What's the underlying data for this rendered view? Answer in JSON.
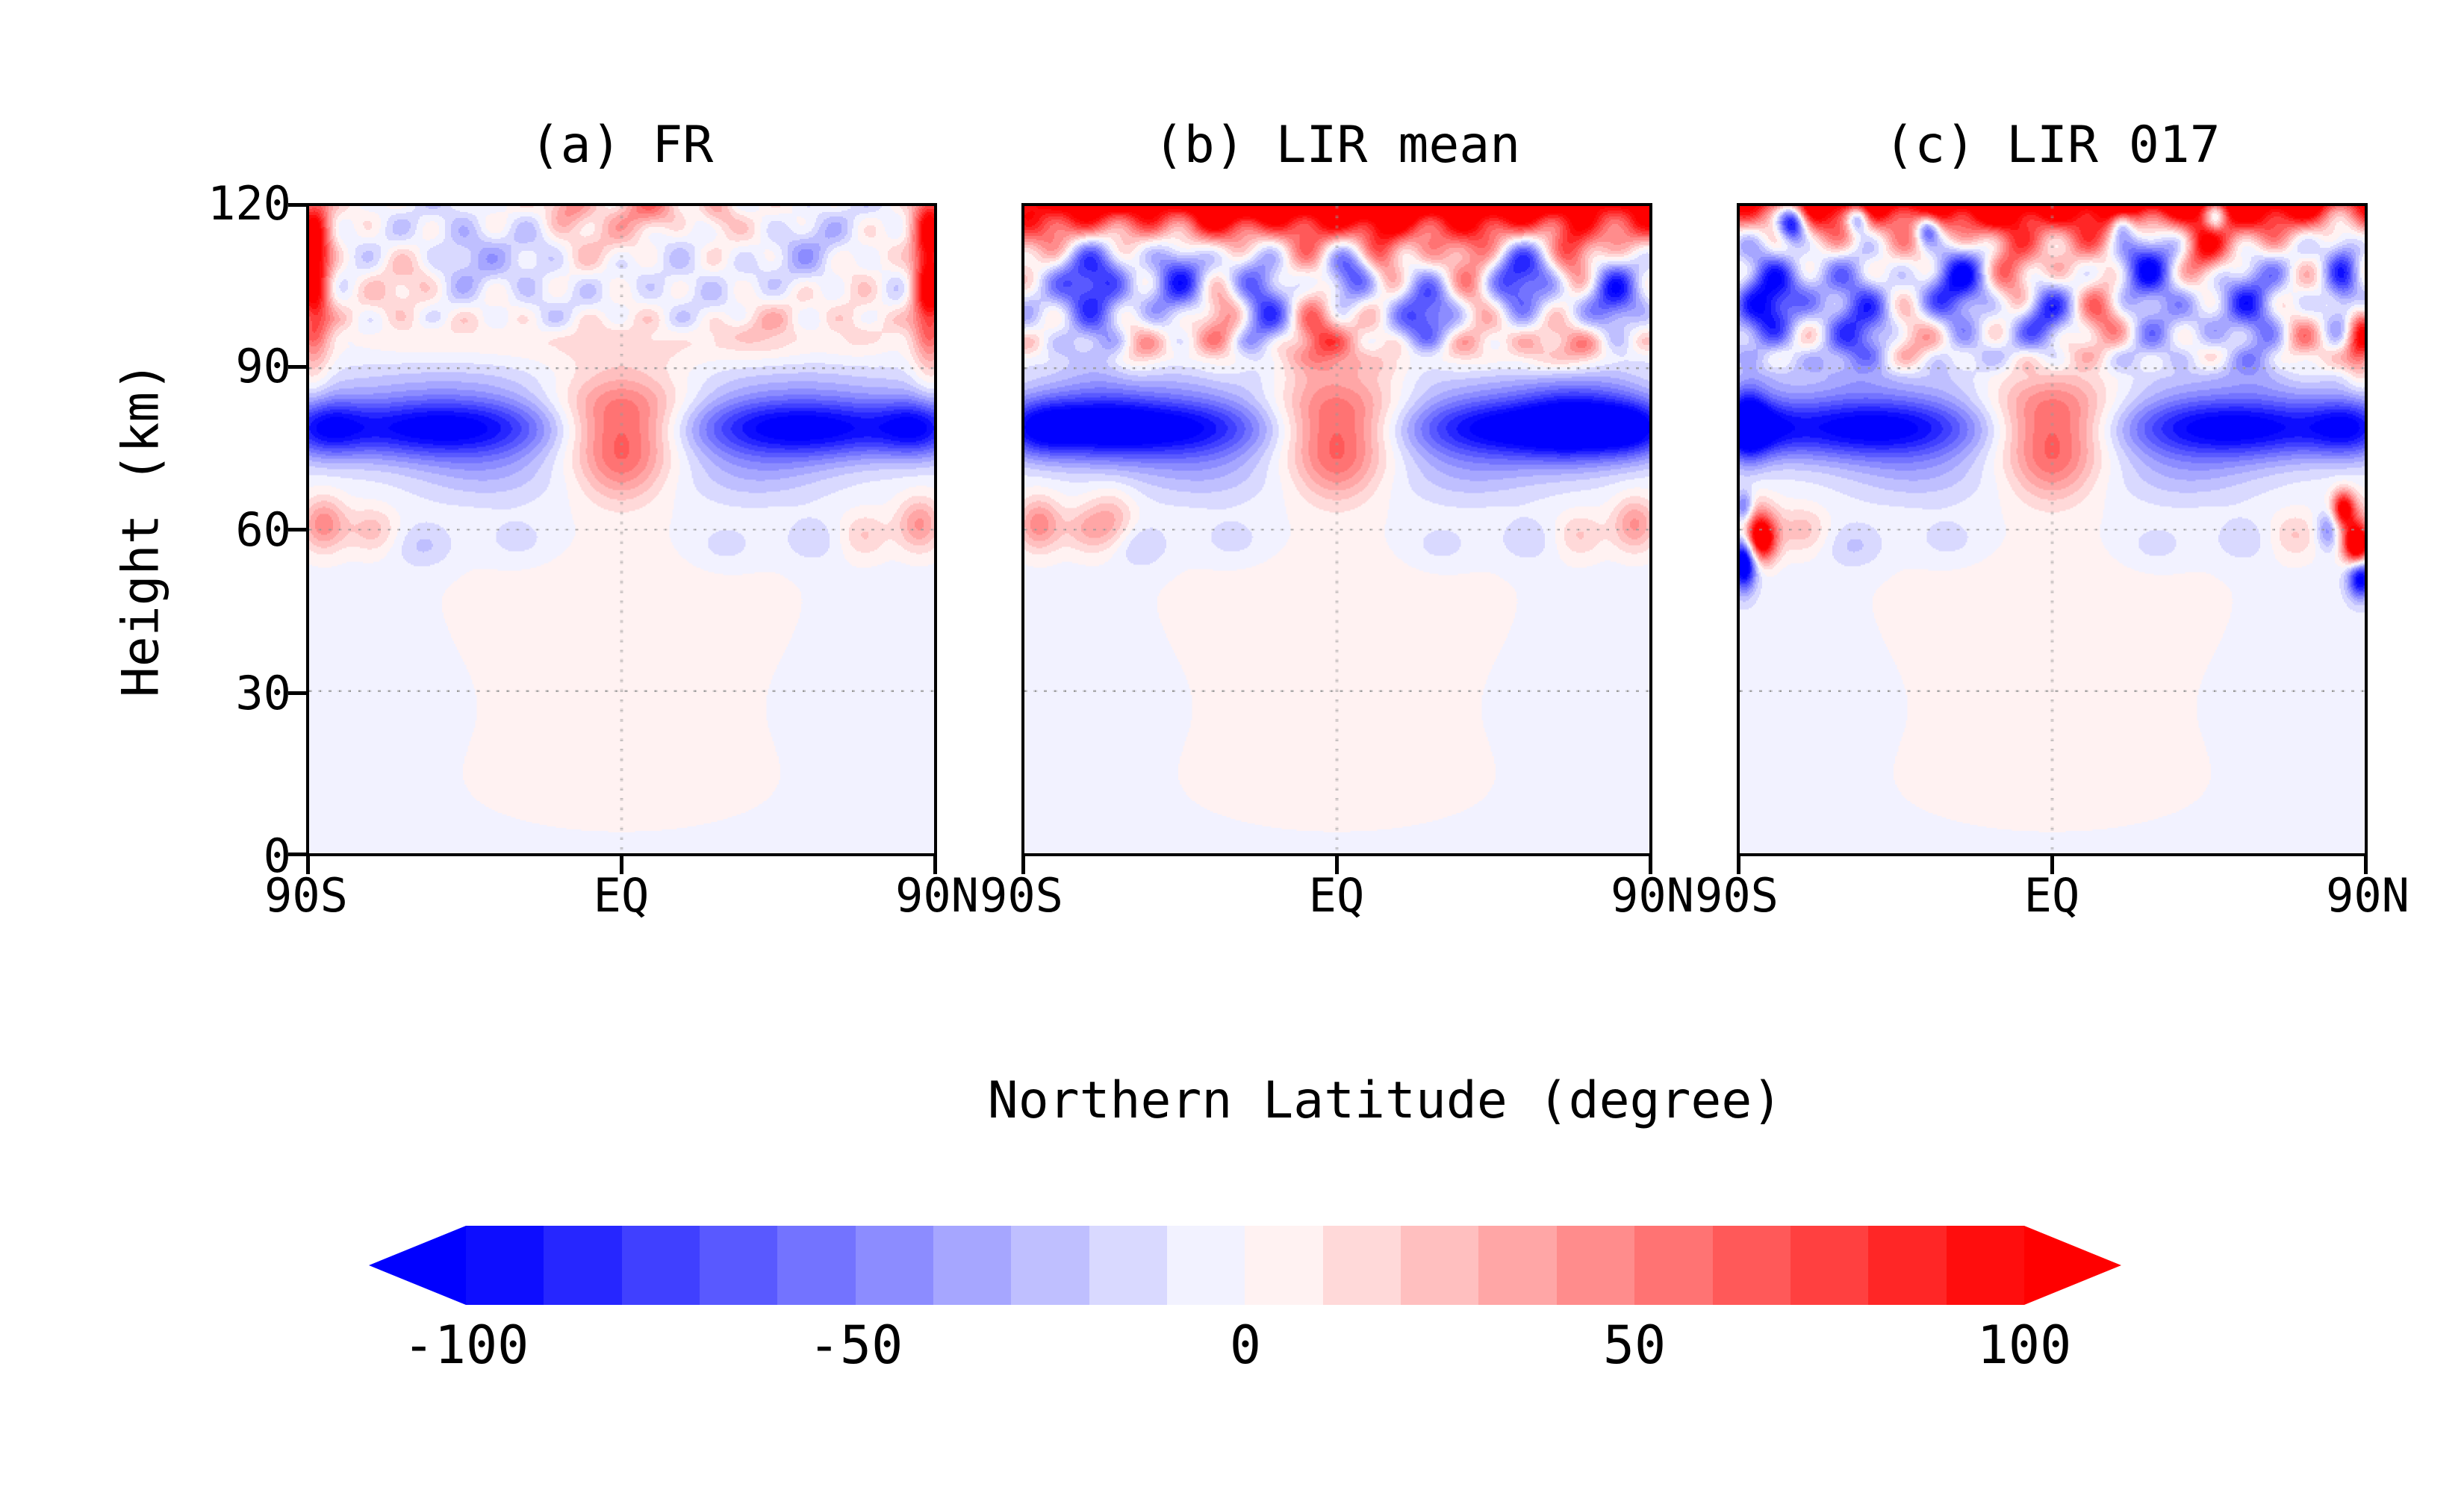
{
  "chart_data": {
    "type": "heatmap",
    "subtype": "filled-contour latitude-height cross sections",
    "xlabel": "Northern Latitude (degree)",
    "ylabel": "Height (km)",
    "x_ticks": [
      "90S",
      "EQ",
      "90N"
    ],
    "y_ticks": [
      "120",
      "90",
      "60",
      "30",
      "0"
    ],
    "y_tick_values": [
      120,
      90,
      60,
      30,
      0
    ],
    "x_range_deg": [
      -90,
      90
    ],
    "y_range_km": [
      0,
      120
    ],
    "grid": {
      "horizontal_km": [
        30,
        60,
        90
      ],
      "vertical_deg": [
        0
      ],
      "style": "dotted",
      "color": "#999999"
    },
    "background_value": -3,
    "base_features": [
      {
        "x": -52,
        "y": 79,
        "amp": -110,
        "sx": 26,
        "sy": 4.2
      },
      {
        "x": 52,
        "y": 79,
        "amp": -110,
        "sx": 26,
        "sy": 4.2
      },
      {
        "x": -86,
        "y": 79,
        "amp": -60,
        "sx": 8,
        "sy": 3.8
      },
      {
        "x": 86,
        "y": 79,
        "amp": -60,
        "sx": 8,
        "sy": 3.8
      },
      {
        "x": 0,
        "y": 80,
        "amp": 85,
        "sx": 14,
        "sy": 6.5
      },
      {
        "x": 0,
        "y": 71,
        "amp": 30,
        "sx": 8,
        "sy": 5
      },
      {
        "x": -38,
        "y": 70,
        "amp": -22,
        "sx": 16,
        "sy": 4
      },
      {
        "x": 38,
        "y": 70,
        "amp": -22,
        "sx": 16,
        "sy": 4
      },
      {
        "x": -50,
        "y": 88,
        "amp": -14,
        "sx": 28,
        "sy": 3
      },
      {
        "x": 50,
        "y": 88,
        "amp": -14,
        "sx": 28,
        "sy": 3
      },
      {
        "x": -86,
        "y": 61,
        "amp": 50,
        "sx": 4.5,
        "sy": 3.5
      },
      {
        "x": -72,
        "y": 60,
        "amp": 28,
        "sx": 5,
        "sy": 3
      },
      {
        "x": 86,
        "y": 61,
        "amp": 45,
        "sx": 4.5,
        "sy": 3.5
      },
      {
        "x": 70,
        "y": 59,
        "amp": 24,
        "sx": 5,
        "sy": 3
      },
      {
        "x": -57,
        "y": 57,
        "amp": -20,
        "sx": 6,
        "sy": 3
      },
      {
        "x": -30,
        "y": 58,
        "amp": -14,
        "sx": 7,
        "sy": 3
      },
      {
        "x": 30,
        "y": 57,
        "amp": -14,
        "sx": 7,
        "sy": 3
      },
      {
        "x": 55,
        "y": 58,
        "amp": -16,
        "sx": 6,
        "sy": 3
      },
      {
        "x": 0,
        "y": 45,
        "amp": 9,
        "sx": 45,
        "sy": 10
      },
      {
        "x": 0,
        "y": 18,
        "amp": 5,
        "sx": 55,
        "sy": 14
      },
      {
        "x": -75,
        "y": 35,
        "amp": -6,
        "sx": 20,
        "sy": 12
      },
      {
        "x": 75,
        "y": 35,
        "amp": -6,
        "sx": 20,
        "sy": 12
      }
    ],
    "panels": [
      {
        "label": "(a) FR",
        "noise": {
          "amp": 16,
          "ymin": 94,
          "seed": 5
        },
        "features": [
          {
            "x": -89,
            "y": 109,
            "amp": 130,
            "sx": 3.5,
            "sy": 11
          },
          {
            "x": 89,
            "y": 109,
            "amp": 130,
            "sx": 3.5,
            "sy": 11
          },
          {
            "x": -15,
            "y": 120,
            "amp": 55,
            "sx": 5,
            "sy": 3
          },
          {
            "x": 8,
            "y": 120,
            "amp": 50,
            "sx": 6,
            "sy": 3
          },
          {
            "x": 28,
            "y": 119,
            "amp": 40,
            "sx": 4,
            "sy": 3
          },
          {
            "x": -45,
            "y": 112,
            "amp": -28,
            "sx": 7,
            "sy": 5
          },
          {
            "x": -25,
            "y": 107,
            "amp": -18,
            "sx": 6,
            "sy": 5
          },
          {
            "x": 18,
            "y": 106,
            "amp": -16,
            "sx": 8,
            "sy": 5
          },
          {
            "x": 55,
            "y": 111,
            "amp": -22,
            "sx": 7,
            "sy": 5
          },
          {
            "x": -62,
            "y": 104,
            "amp": 22,
            "sx": 7,
            "sy": 5
          },
          {
            "x": -2,
            "y": 113,
            "amp": 18,
            "sx": 9,
            "sy": 4
          },
          {
            "x": 40,
            "y": 98,
            "amp": 18,
            "sx": 8,
            "sy": 4
          },
          {
            "x": 68,
            "y": 101,
            "amp": 22,
            "sx": 6,
            "sy": 5
          },
          {
            "x": 0,
            "y": 95,
            "amp": 13,
            "sx": 50,
            "sy": 3
          }
        ]
      },
      {
        "label": "(b) LIR mean",
        "noise": {
          "amp": 24,
          "ymin": 90,
          "seed": 11
        },
        "features": [
          {
            "x": 0,
            "y": 124,
            "amp": 180,
            "sx": 110,
            "sy": 7
          },
          {
            "x": -70,
            "y": 105,
            "amp": -95,
            "sx": 7,
            "sy": 7
          },
          {
            "x": -46,
            "y": 109,
            "amp": -85,
            "sx": 6,
            "sy": 6
          },
          {
            "x": -22,
            "y": 103,
            "amp": -80,
            "sx": 6,
            "sy": 7
          },
          {
            "x": 3,
            "y": 109,
            "amp": -70,
            "sx": 5,
            "sy": 5
          },
          {
            "x": 25,
            "y": 101,
            "amp": -75,
            "sx": 6,
            "sy": 6
          },
          {
            "x": 53,
            "y": 107,
            "amp": -90,
            "sx": 7,
            "sy": 6
          },
          {
            "x": 80,
            "y": 104,
            "amp": -75,
            "sx": 5,
            "sy": 6
          },
          {
            "x": -33,
            "y": 100,
            "amp": 55,
            "sx": 5,
            "sy": 5
          },
          {
            "x": -6,
            "y": 99,
            "amp": 65,
            "sx": 5,
            "sy": 5
          },
          {
            "x": 14,
            "y": 111,
            "amp": 55,
            "sx": 4,
            "sy": 4
          },
          {
            "x": 40,
            "y": 105,
            "amp": 60,
            "sx": 5,
            "sy": 5
          },
          {
            "x": 68,
            "y": 112,
            "amp": 55,
            "sx": 4,
            "sy": 4
          },
          {
            "x": -58,
            "y": 96,
            "amp": 45,
            "sx": 5,
            "sy": 4
          },
          {
            "x": 65,
            "y": 95,
            "amp": 50,
            "sx": 9,
            "sy": 3.5
          },
          {
            "x": 10,
            "y": 93,
            "amp": 25,
            "sx": 35,
            "sy": 3
          },
          {
            "x": 70,
            "y": 80,
            "amp": -55,
            "sx": 11,
            "sy": 5.5
          },
          {
            "x": -70,
            "y": 80,
            "amp": -35,
            "sx": 11,
            "sy": 5
          },
          {
            "x": -65,
            "y": 62,
            "amp": 30,
            "sx": 5,
            "sy": 4
          }
        ]
      },
      {
        "label": "(c) LIR 017",
        "noise": {
          "amp": 28,
          "ymin": 88,
          "seed": 23
        },
        "features": [
          {
            "x": 0,
            "y": 124,
            "amp": 180,
            "sx": 110,
            "sy": 6
          },
          {
            "x": -75,
            "y": 117,
            "amp": -150,
            "sx": 3,
            "sy": 2.5
          },
          {
            "x": -56,
            "y": 118,
            "amp": -120,
            "sx": 2.5,
            "sy": 2
          },
          {
            "x": -36,
            "y": 116,
            "amp": -100,
            "sx": 2.5,
            "sy": 2
          },
          {
            "x": 20,
            "y": 117,
            "amp": -90,
            "sx": 2.5,
            "sy": 2
          },
          {
            "x": 47,
            "y": 118,
            "amp": -80,
            "sx": 2.2,
            "sy": 2
          },
          {
            "x": -82,
            "y": 104,
            "amp": -100,
            "sx": 6,
            "sy": 7
          },
          {
            "x": -56,
            "y": 100,
            "amp": -85,
            "sx": 7,
            "sy": 6
          },
          {
            "x": -27,
            "y": 106,
            "amp": -85,
            "sx": 6,
            "sy": 7
          },
          {
            "x": -2,
            "y": 100,
            "amp": -65,
            "sx": 5,
            "sy": 5
          },
          {
            "x": 28,
            "y": 108,
            "amp": -90,
            "sx": 6,
            "sy": 7
          },
          {
            "x": 58,
            "y": 100,
            "amp": -75,
            "sx": 6,
            "sy": 6
          },
          {
            "x": 84,
            "y": 109,
            "amp": -85,
            "sx": 4,
            "sy": 6
          },
          {
            "x": -42,
            "y": 97,
            "amp": 55,
            "sx": 5,
            "sy": 4
          },
          {
            "x": -12,
            "y": 110,
            "amp": 65,
            "sx": 5,
            "sy": 5
          },
          {
            "x": 14,
            "y": 102,
            "amp": 60,
            "sx": 5,
            "sy": 5
          },
          {
            "x": 44,
            "y": 112,
            "amp": 65,
            "sx": 4,
            "sy": 4
          },
          {
            "x": 72,
            "y": 95,
            "amp": 55,
            "sx": 5,
            "sy": 3.5
          },
          {
            "x": 89,
            "y": 96,
            "amp": 90,
            "sx": 3,
            "sy": 5
          },
          {
            "x": -88,
            "y": 80,
            "amp": -70,
            "sx": 4,
            "sy": 5
          },
          {
            "x": -84,
            "y": 58,
            "amp": 120,
            "sx": 3,
            "sy": 2.8
          },
          {
            "x": -89,
            "y": 54,
            "amp": -140,
            "sx": 2.5,
            "sy": 3.5
          },
          {
            "x": -89,
            "y": 64,
            "amp": -70,
            "sx": 2,
            "sy": 2.2
          },
          {
            "x": 88,
            "y": 57,
            "amp": 140,
            "sx": 2.6,
            "sy": 2.6
          },
          {
            "x": 84,
            "y": 64,
            "amp": 100,
            "sx": 2.2,
            "sy": 2.2
          },
          {
            "x": 89,
            "y": 51,
            "amp": -110,
            "sx": 2.6,
            "sy": 2.6
          },
          {
            "x": 80,
            "y": 60,
            "amp": -60,
            "sx": 2.6,
            "sy": 2.6
          }
        ]
      }
    ],
    "colorbar": {
      "orientation": "horizontal",
      "min": -100,
      "max": 100,
      "step": 10,
      "ticks": [
        "-100",
        "-50",
        "0",
        "50",
        "100"
      ],
      "arrow_left_color": "#0000FF",
      "arrow_right_color": "#FF0000",
      "colors": [
        "#0D0DFF",
        "#2626FF",
        "#4040FF",
        "#5959FF",
        "#7373FF",
        "#8C8CFF",
        "#A6A6FF",
        "#BFBFFF",
        "#D9D9FF",
        "#F2F2FF",
        "#FFF2F2",
        "#FFD9D9",
        "#FFBFBF",
        "#FFA6A6",
        "#FF8C8C",
        "#FF7373",
        "#FF5959",
        "#FF4040",
        "#FF2626",
        "#FF0D0D"
      ]
    }
  }
}
